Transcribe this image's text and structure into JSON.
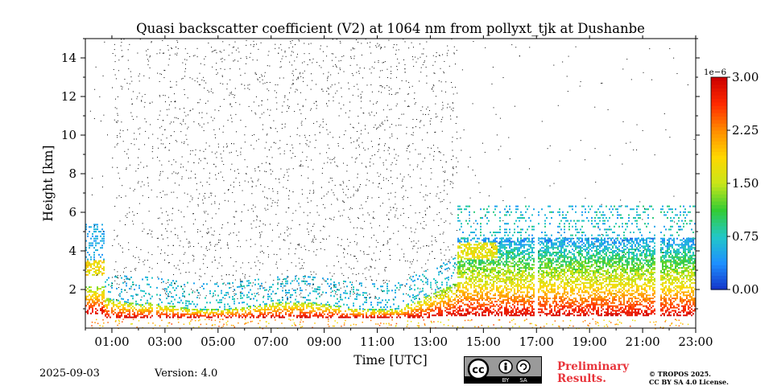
{
  "chart_data": {
    "type": "heatmap",
    "title": "Quasi backscatter coefficient (V2) at 1064 nm from pollyxt_tjk at Dushanbe",
    "xlabel": "Time [UTC]",
    "ylabel": "Height [km]",
    "xlim_hours": [
      0,
      23
    ],
    "ylim_km": [
      0,
      15
    ],
    "x_tick_labels": [
      "01:00",
      "03:00",
      "05:00",
      "07:00",
      "09:00",
      "11:00",
      "13:00",
      "15:00",
      "17:00",
      "19:00",
      "21:00",
      "23:00"
    ],
    "x_tick_hours": [
      1,
      3,
      5,
      7,
      9,
      11,
      13,
      15,
      17,
      19,
      21,
      23
    ],
    "y_ticks": [
      2,
      4,
      6,
      8,
      10,
      12,
      14
    ],
    "colorbar": {
      "range": [
        0.0,
        3.0
      ],
      "multiplier_label": "1e−6",
      "tick_labels": [
        "0.00",
        "0.75",
        "1.50",
        "2.25",
        "3.00"
      ],
      "tick_values": [
        0.0,
        0.75,
        1.5,
        2.25,
        3.0
      ],
      "colormap": [
        "#1433c8",
        "#1e90ff",
        "#22c8c8",
        "#33cc33",
        "#c8e619",
        "#ffd700",
        "#ff8c00",
        "#ff2a00",
        "#cc0000"
      ]
    },
    "layers": [
      {
        "name": "boundary layer / near-surface aerosol",
        "time_range_hours": [
          0,
          23
        ],
        "height_km_approx": [
          0.7,
          2.6
        ],
        "value_range": [
          2.0,
          3.0
        ]
      },
      {
        "name": "lofted aerosol layer morning",
        "time_range_hours": [
          0,
          0.7
        ],
        "height_km_approx": [
          2.8,
          3.6
        ],
        "value_range": [
          1.0,
          2.5
        ]
      },
      {
        "name": "lofted aerosol layer afternoon",
        "time_range_hours": [
          14,
          23
        ],
        "height_km_approx": [
          3.0,
          4.6
        ],
        "value_range": [
          0.5,
          2.0
        ]
      }
    ],
    "data_gaps_hours": [
      2.6,
      16.95,
      21.55
    ]
  },
  "footer": {
    "date": "2025-09-03",
    "version": "Version: 4.0",
    "preliminary_line1": "Preliminary",
    "preliminary_line2": "Results.",
    "copyright_line1": "© TROPOS 2025.",
    "copyright_line2": "CC BY SA 4.0 License.",
    "cc_by": "BY",
    "cc_sa": "SA",
    "cc_text": "cc"
  }
}
